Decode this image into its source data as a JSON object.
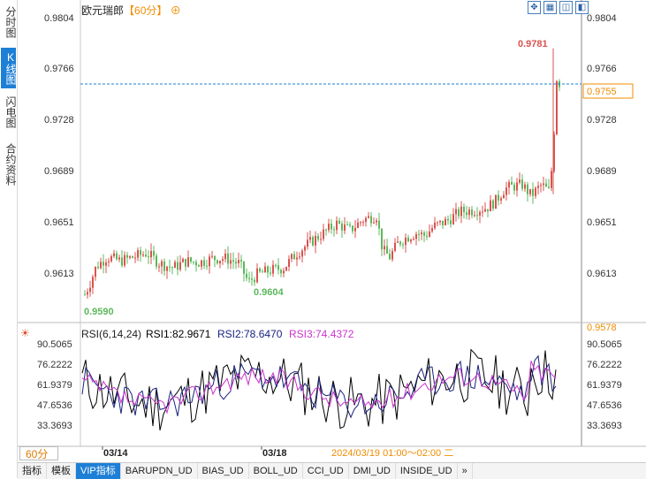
{
  "left_tabs": [
    {
      "label": "分时图",
      "active": false
    },
    {
      "label": "K线图",
      "active": true
    },
    {
      "label": "闪电图",
      "active": false
    },
    {
      "label": "合约资料",
      "active": false
    }
  ],
  "header": {
    "symbol": "欧元瑞郎",
    "period": "【60分】",
    "zoom_icon": "⊕"
  },
  "toolbar_icons": [
    "fit-icon",
    "grid-icon",
    "chart-toggle-icon",
    "back-icon"
  ],
  "main_chart": {
    "price_levels": [
      "0.9804",
      "0.9766",
      "0.9728",
      "0.9689",
      "0.9651",
      "0.9613"
    ],
    "last_price": "0.9755",
    "high_label": "0.9781",
    "low_label": "0.9590",
    "mid_low_label": "0.9604",
    "bottom_price": "0.9578",
    "dates": [
      "03/14",
      "03/18"
    ],
    "time_readout": "2024/03/19 01:00～02:00 二"
  },
  "rsi_panel": {
    "settings": "RSI(6,14,24)",
    "rsi1": "RSI1:82.9671",
    "rsi2": "RSI2:78.6470",
    "rsi3": "RSI3:74.4372",
    "levels": [
      "90.5065",
      "76.2222",
      "61.9379",
      "47.6536",
      "33.3693"
    ]
  },
  "period_selector": "60分",
  "bottom_tabs": [
    {
      "label": "指标",
      "active": false
    },
    {
      "label": "模板",
      "active": false
    },
    {
      "label": "VIP指标",
      "active": true
    },
    {
      "label": "BARUPDN_UD",
      "active": false
    },
    {
      "label": "BIAS_UD",
      "active": false
    },
    {
      "label": "BOLL_UD",
      "active": false
    },
    {
      "label": "CCI_UD",
      "active": false
    },
    {
      "label": "DMI_UD",
      "active": false
    },
    {
      "label": "INSIDE_UD",
      "active": false
    },
    {
      "label": "»",
      "active": false
    }
  ],
  "colors": {
    "up": "#d9534f",
    "down": "#5cb85c",
    "rsi1": "#000000",
    "rsi2": "#1a237e",
    "rsi3": "#cc33cc",
    "accent": "#f08c00",
    "tab_active": "#1e7fd6"
  }
}
